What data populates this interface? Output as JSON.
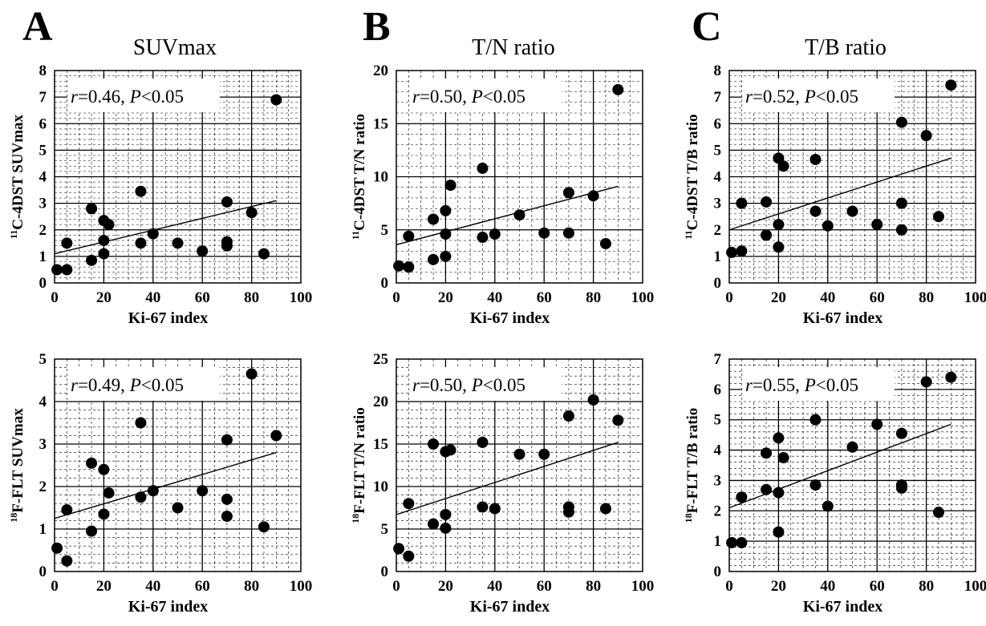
{
  "panel_letters": [
    "A",
    "B",
    "C"
  ],
  "column_titles": [
    "SUVmax",
    "T/N ratio",
    "T/B ratio"
  ],
  "chart_data": [
    {
      "type": "scatter",
      "col": 0,
      "row": 0,
      "ylabel": {
        "sup": "11",
        "text": "C-4DST SUVmax"
      },
      "xlabel": "Ki-67 index",
      "xlim": [
        0,
        100
      ],
      "ylim": [
        0,
        8
      ],
      "xticks": [
        "0",
        "20",
        "40",
        "60",
        "80",
        "100"
      ],
      "yticks": [
        "0",
        "1",
        "2",
        "3",
        "4",
        "5",
        "6",
        "7",
        "8"
      ],
      "stat": {
        "r": "0.46",
        "p": "0.05"
      },
      "trend": [
        [
          0,
          1.1
        ],
        [
          90,
          3.1
        ]
      ],
      "points": [
        [
          1,
          0.5
        ],
        [
          5,
          0.5
        ],
        [
          5,
          1.5
        ],
        [
          15,
          0.85
        ],
        [
          15,
          2.8
        ],
        [
          20,
          1.1
        ],
        [
          20,
          1.6
        ],
        [
          20,
          2.35
        ],
        [
          22,
          2.2
        ],
        [
          35,
          1.5
        ],
        [
          35,
          3.45
        ],
        [
          40,
          1.85
        ],
        [
          50,
          1.5
        ],
        [
          60,
          1.2
        ],
        [
          70,
          1.4
        ],
        [
          70,
          1.55
        ],
        [
          70,
          3.05
        ],
        [
          80,
          2.65
        ],
        [
          85,
          1.1
        ],
        [
          90,
          6.9
        ]
      ]
    },
    {
      "type": "scatter",
      "col": 1,
      "row": 0,
      "ylabel": {
        "sup": "11",
        "text": "C-4DST T/N ratio"
      },
      "xlabel": "Ki-67 index",
      "xlim": [
        0,
        100
      ],
      "ylim": [
        0,
        20
      ],
      "xticks": [
        "0",
        "20",
        "40",
        "60",
        "80",
        "100"
      ],
      "yticks": [
        "0",
        "5",
        "10",
        "15",
        "20"
      ],
      "stat": {
        "r": "0.50",
        "p": "0.05"
      },
      "trend": [
        [
          0,
          3.6
        ],
        [
          90,
          9.1
        ]
      ],
      "points": [
        [
          1,
          1.6
        ],
        [
          5,
          1.5
        ],
        [
          5,
          4.4
        ],
        [
          15,
          2.2
        ],
        [
          15,
          6.0
        ],
        [
          20,
          2.5
        ],
        [
          20,
          4.6
        ],
        [
          20,
          6.8
        ],
        [
          22,
          9.2
        ],
        [
          35,
          4.3
        ],
        [
          35,
          10.8
        ],
        [
          40,
          4.6
        ],
        [
          50,
          6.4
        ],
        [
          60,
          4.7
        ],
        [
          70,
          4.7
        ],
        [
          70,
          8.5
        ],
        [
          80,
          8.2
        ],
        [
          85,
          3.7
        ],
        [
          90,
          18.2
        ]
      ]
    },
    {
      "type": "scatter",
      "col": 2,
      "row": 0,
      "ylabel": {
        "sup": "11",
        "text": "C-4DST T/B ratio"
      },
      "xlabel": "Ki-67 index",
      "xlim": [
        0,
        100
      ],
      "ylim": [
        0,
        8
      ],
      "xticks": [
        "0",
        "20",
        "40",
        "60",
        "80",
        "100"
      ],
      "yticks": [
        "0",
        "1",
        "2",
        "3",
        "4",
        "5",
        "6",
        "7",
        "8"
      ],
      "stat": {
        "r": "0.52",
        "p": "0.05"
      },
      "trend": [
        [
          0,
          2.0
        ],
        [
          90,
          4.7
        ]
      ],
      "points": [
        [
          1,
          1.15
        ],
        [
          5,
          1.2
        ],
        [
          5,
          3.0
        ],
        [
          15,
          1.8
        ],
        [
          15,
          3.05
        ],
        [
          20,
          1.35
        ],
        [
          20,
          2.2
        ],
        [
          20,
          4.7
        ],
        [
          22,
          4.4
        ],
        [
          35,
          2.7
        ],
        [
          35,
          4.65
        ],
        [
          40,
          2.15
        ],
        [
          50,
          2.7
        ],
        [
          60,
          2.2
        ],
        [
          70,
          2.0
        ],
        [
          70,
          3.0
        ],
        [
          70,
          6.05
        ],
        [
          80,
          5.55
        ],
        [
          85,
          2.5
        ],
        [
          90,
          7.45
        ]
      ]
    },
    {
      "type": "scatter",
      "col": 0,
      "row": 1,
      "ylabel": {
        "sup": "18",
        "text": "F-FLT SUVmax"
      },
      "xlabel": "Ki-67 index",
      "xlim": [
        0,
        100
      ],
      "ylim": [
        0,
        5
      ],
      "xticks": [
        "0",
        "20",
        "40",
        "60",
        "80",
        "100"
      ],
      "yticks": [
        "0",
        "1",
        "2",
        "3",
        "4",
        "5"
      ],
      "stat": {
        "r": "0.49",
        "p": "0.05"
      },
      "trend": [
        [
          0,
          1.25
        ],
        [
          90,
          2.8
        ]
      ],
      "points": [
        [
          1,
          0.55
        ],
        [
          5,
          0.25
        ],
        [
          5,
          1.45
        ],
        [
          15,
          0.95
        ],
        [
          15,
          2.55
        ],
        [
          20,
          1.35
        ],
        [
          20,
          2.4
        ],
        [
          22,
          1.85
        ],
        [
          35,
          1.75
        ],
        [
          35,
          3.5
        ],
        [
          40,
          1.9
        ],
        [
          50,
          1.5
        ],
        [
          60,
          1.9
        ],
        [
          70,
          1.3
        ],
        [
          70,
          1.7
        ],
        [
          70,
          3.1
        ],
        [
          80,
          4.65
        ],
        [
          85,
          1.05
        ],
        [
          90,
          3.2
        ]
      ]
    },
    {
      "type": "scatter",
      "col": 1,
      "row": 1,
      "ylabel": {
        "sup": "18",
        "text": "F-FLT T/N ratio"
      },
      "xlabel": "Ki-67 index",
      "xlim": [
        0,
        100
      ],
      "ylim": [
        0,
        25
      ],
      "xticks": [
        "0",
        "20",
        "40",
        "60",
        "80",
        "100"
      ],
      "yticks": [
        "0",
        "5",
        "10",
        "15",
        "20",
        "25"
      ],
      "stat": {
        "r": "0.50",
        "p": "0.05"
      },
      "trend": [
        [
          0,
          6.7
        ],
        [
          90,
          15.2
        ]
      ],
      "points": [
        [
          1,
          2.7
        ],
        [
          5,
          1.8
        ],
        [
          5,
          8.0
        ],
        [
          15,
          5.6
        ],
        [
          15,
          15.0
        ],
        [
          20,
          5.1
        ],
        [
          20,
          6.7
        ],
        [
          20,
          14.1
        ],
        [
          22,
          14.3
        ],
        [
          35,
          7.6
        ],
        [
          35,
          15.2
        ],
        [
          40,
          7.4
        ],
        [
          50,
          13.8
        ],
        [
          60,
          13.8
        ],
        [
          70,
          7.0
        ],
        [
          70,
          7.6
        ],
        [
          70,
          18.3
        ],
        [
          80,
          20.2
        ],
        [
          85,
          7.4
        ],
        [
          90,
          17.8
        ]
      ]
    },
    {
      "type": "scatter",
      "col": 2,
      "row": 1,
      "ylabel": {
        "sup": "18",
        "text": "F-FLT T/B ratio"
      },
      "xlabel": "Ki-67 index",
      "xlim": [
        0,
        100
      ],
      "ylim": [
        0,
        7
      ],
      "xticks": [
        "0",
        "20",
        "40",
        "60",
        "80",
        "100"
      ],
      "yticks": [
        "0",
        "1",
        "2",
        "3",
        "4",
        "5",
        "6",
        "7"
      ],
      "stat": {
        "r": "0.55",
        "p": "0.05"
      },
      "trend": [
        [
          0,
          2.1
        ],
        [
          90,
          4.85
        ]
      ],
      "points": [
        [
          1,
          0.95
        ],
        [
          5,
          0.95
        ],
        [
          5,
          2.45
        ],
        [
          15,
          2.7
        ],
        [
          15,
          3.9
        ],
        [
          20,
          1.3
        ],
        [
          20,
          2.6
        ],
        [
          20,
          4.4
        ],
        [
          22,
          3.75
        ],
        [
          35,
          2.85
        ],
        [
          35,
          5.0
        ],
        [
          40,
          2.15
        ],
        [
          50,
          4.1
        ],
        [
          60,
          4.85
        ],
        [
          70,
          2.75
        ],
        [
          70,
          2.85
        ],
        [
          70,
          4.55
        ],
        [
          80,
          6.25
        ],
        [
          85,
          1.95
        ],
        [
          90,
          6.4
        ]
      ]
    }
  ]
}
